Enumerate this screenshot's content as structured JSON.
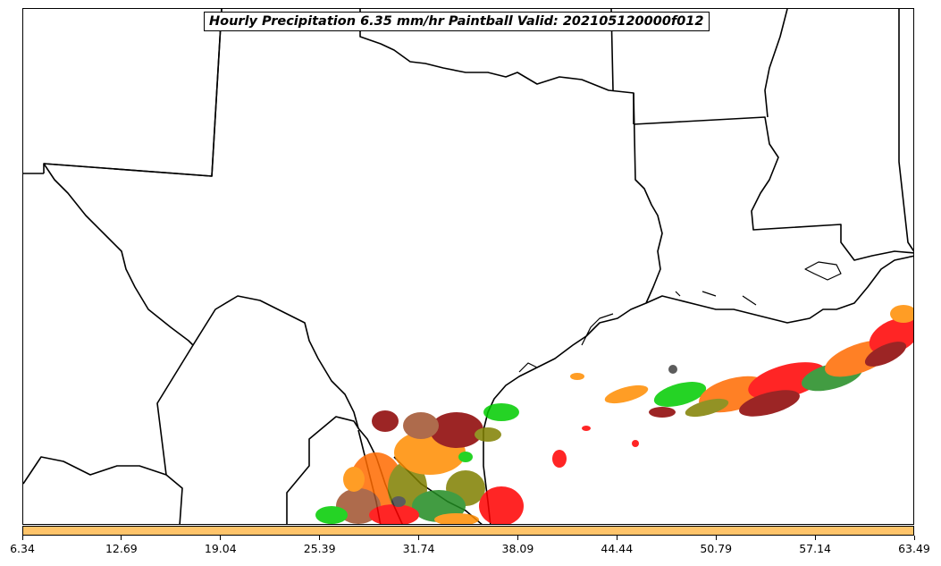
{
  "title": "Hourly Precipitation 6.35 mm/hr Paintball Valid: 202105120000f012",
  "colorbar": {
    "fill_color": "#ffc46a",
    "tick_labels": [
      "6.34",
      "12.69",
      "19.04",
      "25.39",
      "31.74",
      "38.09",
      "44.44",
      "50.79",
      "57.14",
      "63.49"
    ]
  },
  "map": {
    "region": "Texas and Gulf Coast",
    "boundary_color": "#000000",
    "paintball_colors": [
      "#ff0000",
      "#ff6a00",
      "#ff8c00",
      "#8b0000",
      "#00cc00",
      "#228b22",
      "#808000",
      "#404040",
      "#a0522d"
    ]
  }
}
